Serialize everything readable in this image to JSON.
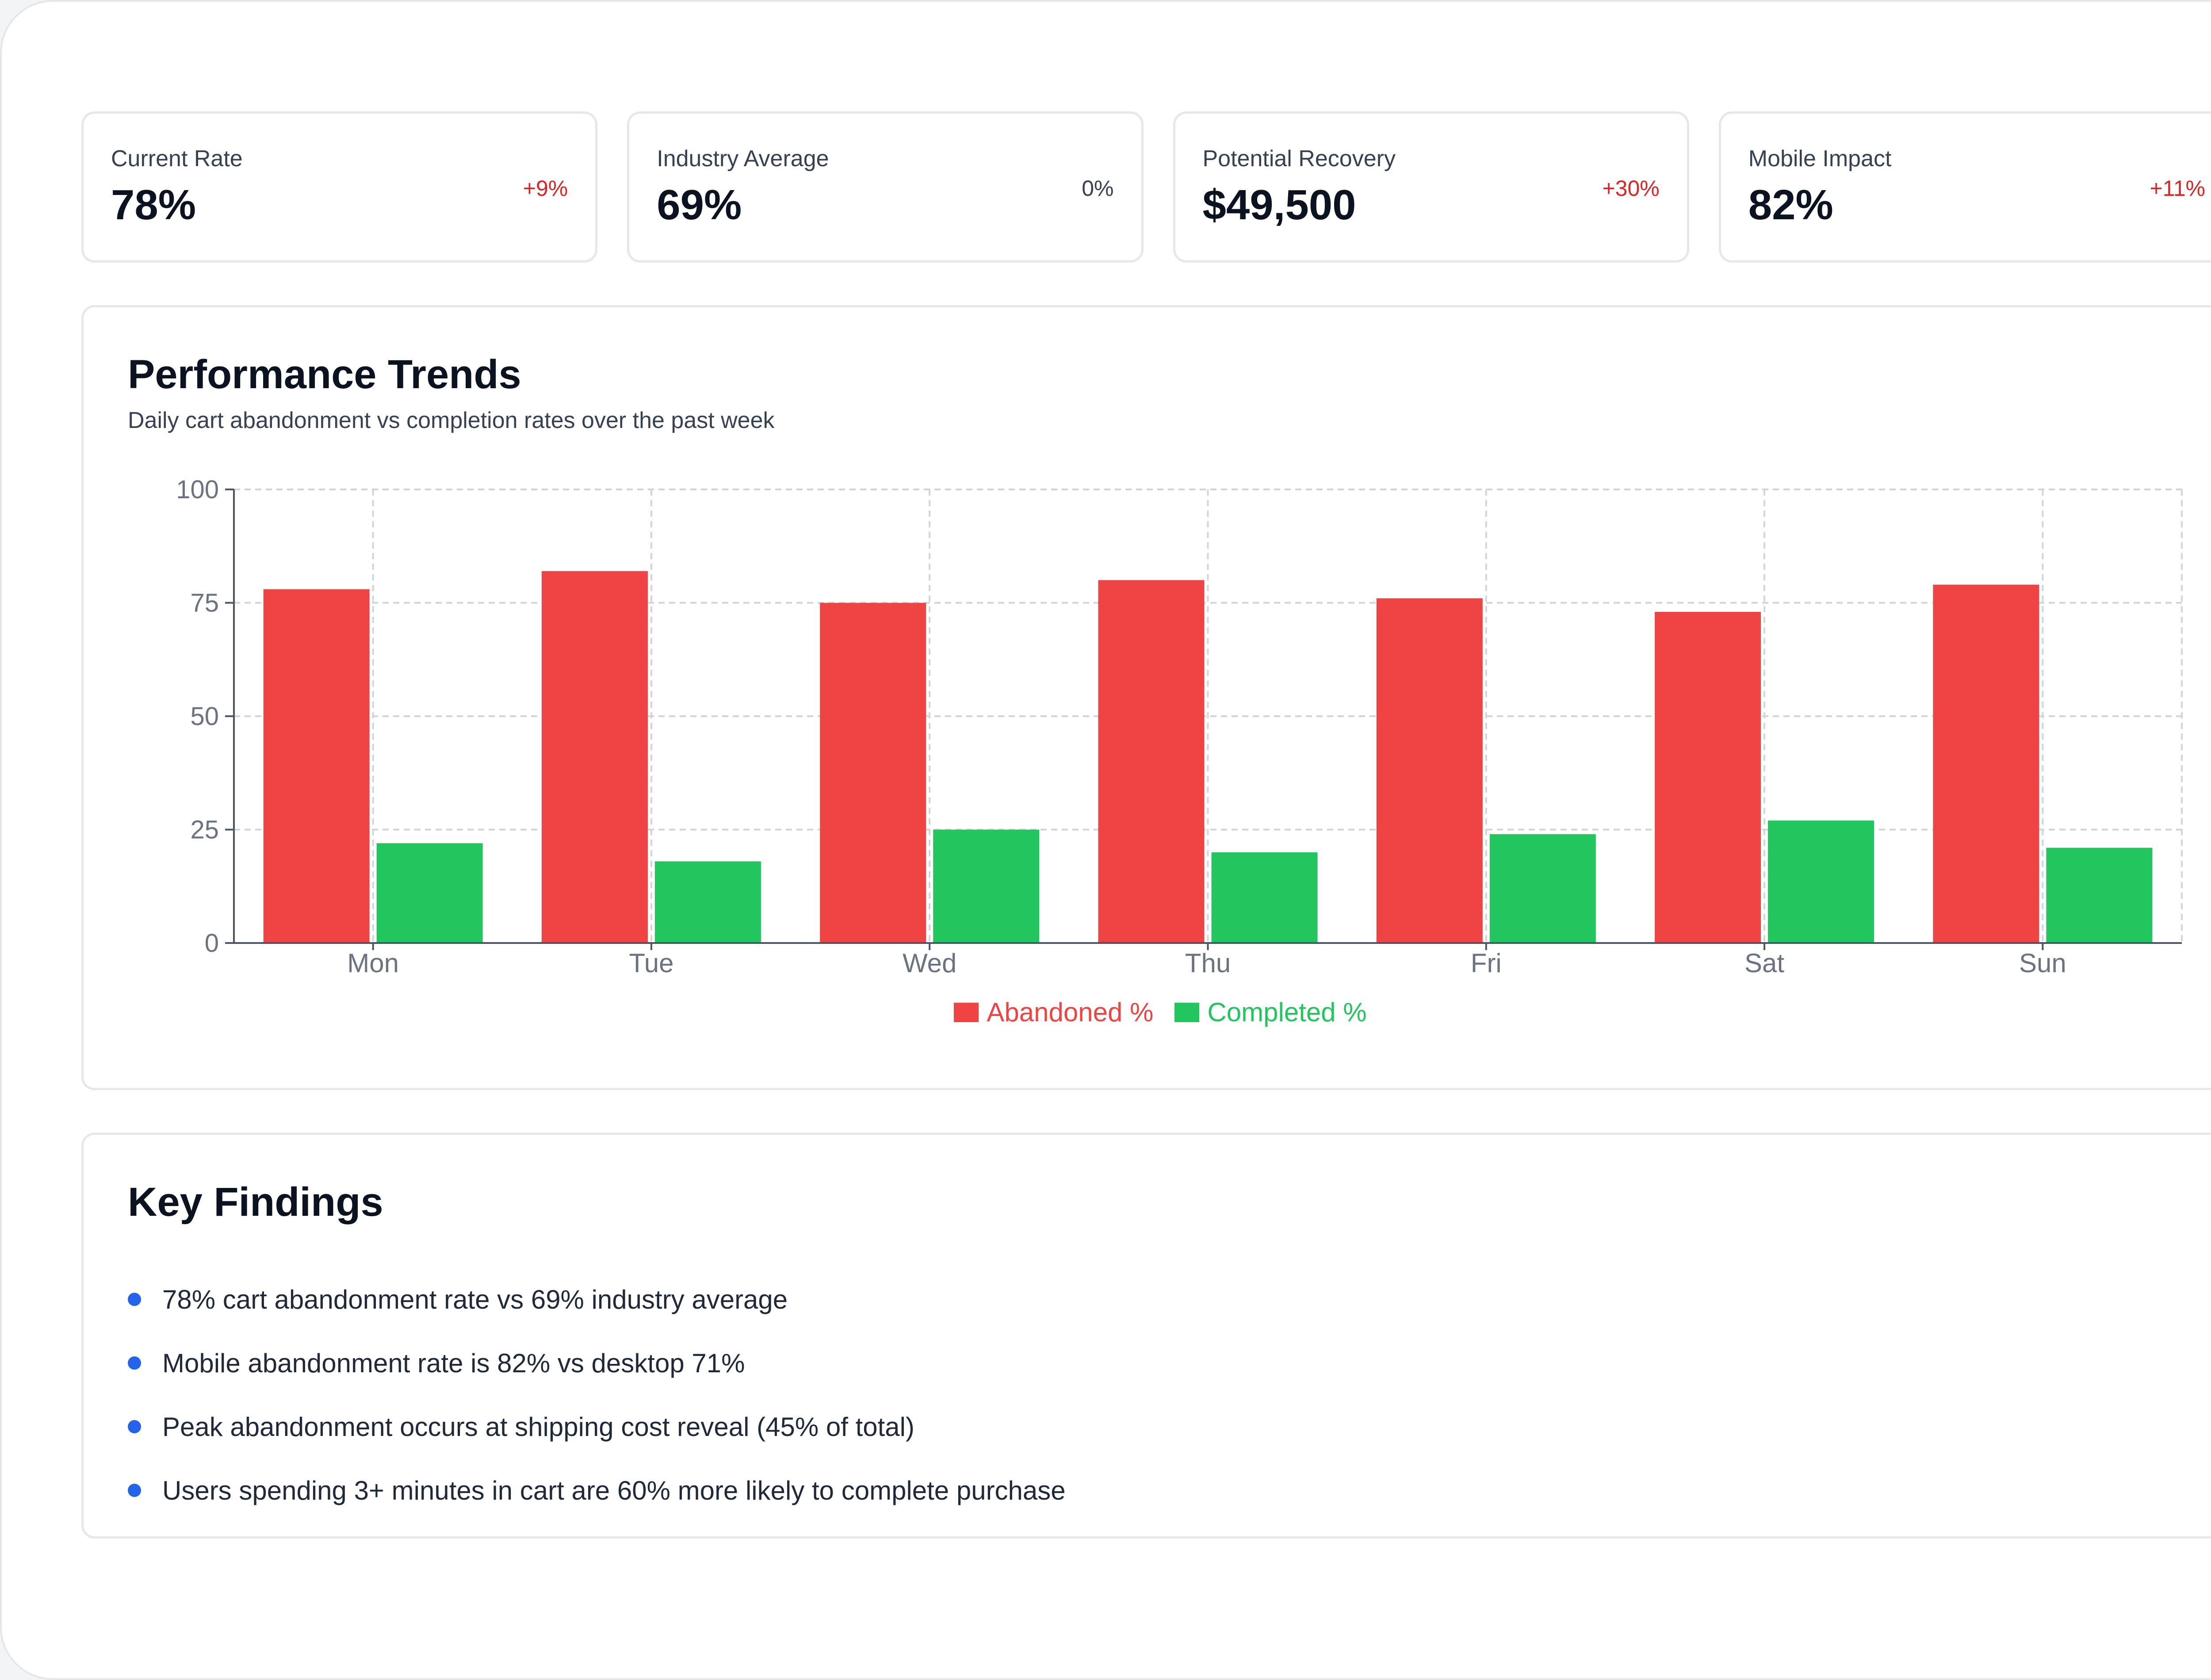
{
  "kpis": [
    {
      "label": "Current Rate",
      "value": "78%",
      "change": "+9%",
      "change_color": "#dc2626"
    },
    {
      "label": "Industry Average",
      "value": "69%",
      "change": "0%",
      "change_color": "#374151"
    },
    {
      "label": "Potential Recovery",
      "value": "$49,500",
      "change": "+30%",
      "change_color": "#dc2626"
    },
    {
      "label": "Mobile Impact",
      "value": "82%",
      "change": "+11%",
      "change_color": "#dc2626"
    }
  ],
  "trends": {
    "title": "Performance Trends",
    "subtitle": "Daily cart abandonment vs completion rates over the past week"
  },
  "chart_data": {
    "type": "bar",
    "categories": [
      "Mon",
      "Tue",
      "Wed",
      "Thu",
      "Fri",
      "Sat",
      "Sun"
    ],
    "series": [
      {
        "name": "Abandoned %",
        "values": [
          78,
          82,
          75,
          80,
          76,
          73,
          79
        ],
        "color": "#ef4444"
      },
      {
        "name": "Completed %",
        "values": [
          22,
          18,
          25,
          20,
          24,
          27,
          21
        ],
        "color": "#22c55e"
      }
    ],
    "yticks": [
      0,
      25,
      50,
      75,
      100
    ],
    "ylim": [
      0,
      100
    ],
    "grid": true,
    "legend_position": "bottom-center"
  },
  "findings": {
    "title": "Key Findings",
    "items": [
      "78% cart abandonment rate vs 69% industry average",
      "Mobile abandonment rate is 82% vs desktop 71%",
      "Peak abandonment occurs at shipping cost reveal (45% of total)",
      "Users spending 3+ minutes in cart are 60% more likely to complete purchase"
    ],
    "bullet_color": "#2563eb"
  }
}
